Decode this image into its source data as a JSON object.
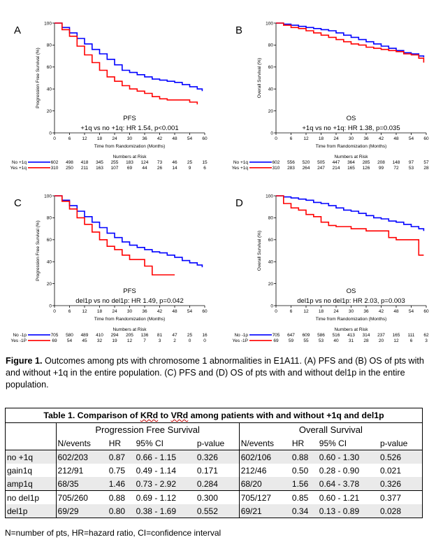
{
  "panels": [
    {
      "letter": "A",
      "ylabel": "Progression Free Survival (%)",
      "xlabel": "Time from Randomization (Months)",
      "caption_title": "PFS",
      "caption_sub": "+1q vs no +1q: HR 1.54, p<0.001",
      "risk_header": "Numbers at Risk",
      "xticks": [
        0,
        6,
        12,
        18,
        24,
        30,
        36,
        42,
        48,
        54,
        60
      ],
      "yticks": [
        0,
        20,
        40,
        60,
        80,
        100
      ],
      "risk_rows": [
        {
          "label": "No +1q",
          "color": "#0000ff",
          "values": [
            "602",
            "498",
            "418",
            "345",
            "255",
            "183",
            "124",
            "73",
            "46",
            "25",
            "15"
          ]
        },
        {
          "label": "Yes +1q",
          "color": "#ff0000",
          "values": [
            "310",
            "250",
            "211",
            "163",
            "107",
            "69",
            "44",
            "26",
            "14",
            "9",
            "6"
          ]
        }
      ]
    },
    {
      "letter": "B",
      "ylabel": "Overall Survival (%)",
      "xlabel": "Time from Randomization (Months)",
      "caption_title": "OS",
      "caption_sub": "+1q vs no +1q: HR 1.38, p=0.035",
      "risk_header": "Numbers at Risk",
      "xticks": [
        0,
        6,
        12,
        18,
        24,
        30,
        36,
        42,
        48,
        54,
        60
      ],
      "yticks": [
        0,
        20,
        40,
        60,
        80,
        100
      ],
      "risk_rows": [
        {
          "label": "No +1q",
          "color": "#0000ff",
          "values": [
            "602",
            "556",
            "520",
            "505",
            "447",
            "364",
            "285",
            "208",
            "148",
            "97",
            "57"
          ]
        },
        {
          "label": "Yes +1q",
          "color": "#ff0000",
          "values": [
            "310",
            "283",
            "264",
            "247",
            "214",
            "165",
            "126",
            "99",
            "72",
            "53",
            "28"
          ]
        }
      ]
    },
    {
      "letter": "C",
      "ylabel": "Progression Free Survival (%)",
      "xlabel": "Time from Randomization (Months)",
      "caption_title": "PFS",
      "caption_sub": "del1p vs no del1p: HR 1.49, p=0.042",
      "risk_header": "Numbers at Risk",
      "xticks": [
        0,
        6,
        12,
        18,
        24,
        30,
        36,
        42,
        48,
        54,
        60
      ],
      "yticks": [
        0,
        20,
        40,
        60,
        80,
        100
      ],
      "risk_rows": [
        {
          "label": "No -1p",
          "color": "#0000ff",
          "values": [
            "705",
            "580",
            "489",
            "410",
            "294",
            "205",
            "136",
            "81",
            "47",
            "25",
            "16"
          ]
        },
        {
          "label": "Yes -1P",
          "color": "#ff0000",
          "values": [
            "69",
            "54",
            "45",
            "32",
            "19",
            "12",
            "7",
            "3",
            "2",
            "0",
            "0"
          ]
        }
      ]
    },
    {
      "letter": "D",
      "ylabel": "Overall Survival (%)",
      "xlabel": "Time from Randomization (Months)",
      "caption_title": "OS",
      "caption_sub": "del1p vs no del1p: HR 2.03, p=0.003",
      "risk_header": "Numbers at Risk",
      "xticks": [
        0,
        6,
        12,
        18,
        24,
        30,
        36,
        42,
        48,
        54,
        60
      ],
      "yticks": [
        0,
        20,
        40,
        60,
        80,
        100
      ],
      "risk_rows": [
        {
          "label": "No -1p",
          "color": "#0000ff",
          "values": [
            "705",
            "647",
            "609",
            "586",
            "516",
            "413",
            "314",
            "237",
            "165",
            "111",
            "62"
          ]
        },
        {
          "label": "Yes -1P",
          "color": "#ff0000",
          "values": [
            "69",
            "59",
            "55",
            "53",
            "40",
            "31",
            "28",
            "20",
            "12",
            "6",
            "3"
          ]
        }
      ]
    }
  ],
  "chart_data": [
    {
      "type": "line",
      "title": "PFS",
      "subtitle": "+1q vs no +1q: HR 1.54, p<0.001",
      "xlabel": "Time from Randomization (Months)",
      "ylabel": "Progression Free Survival (%)",
      "xlim": [
        0,
        60
      ],
      "ylim": [
        0,
        100
      ],
      "grid": false,
      "series": [
        {
          "name": "No +1q",
          "color": "#0000ff",
          "x": [
            0,
            3,
            6,
            9,
            12,
            15,
            18,
            21,
            24,
            27,
            30,
            33,
            36,
            39,
            42,
            45,
            48,
            51,
            54,
            57,
            59
          ],
          "y": [
            100,
            96,
            91,
            86,
            81,
            76,
            72,
            67,
            62,
            57,
            55,
            53,
            51,
            49,
            48,
            47,
            46,
            44,
            42,
            40,
            38
          ]
        },
        {
          "name": "Yes +1q",
          "color": "#ff0000",
          "x": [
            0,
            3,
            6,
            9,
            12,
            15,
            18,
            21,
            24,
            27,
            30,
            33,
            36,
            39,
            42,
            45,
            48,
            51,
            54,
            57
          ],
          "y": [
            100,
            94,
            88,
            79,
            71,
            64,
            57,
            51,
            47,
            43,
            40,
            38,
            36,
            33,
            31,
            30,
            30,
            30,
            28,
            26
          ]
        }
      ]
    },
    {
      "type": "line",
      "title": "OS",
      "subtitle": "+1q vs no +1q: HR 1.38, p=0.035",
      "xlabel": "Time from Randomization (Months)",
      "ylabel": "Overall Survival (%)",
      "xlim": [
        0,
        60
      ],
      "ylim": [
        0,
        100
      ],
      "grid": false,
      "series": [
        {
          "name": "No +1q",
          "color": "#0000ff",
          "x": [
            0,
            3,
            6,
            9,
            12,
            15,
            18,
            21,
            24,
            27,
            30,
            33,
            36,
            39,
            42,
            45,
            48,
            51,
            54,
            57,
            59
          ],
          "y": [
            100,
            99,
            98,
            97,
            96,
            95,
            94,
            93,
            91,
            89,
            87,
            85,
            83,
            81,
            79,
            77,
            75,
            73,
            72,
            70,
            69
          ]
        },
        {
          "name": "Yes +1q",
          "color": "#ff0000",
          "x": [
            0,
            3,
            6,
            9,
            12,
            15,
            18,
            21,
            24,
            27,
            30,
            33,
            36,
            39,
            42,
            45,
            48,
            51,
            54,
            57,
            59
          ],
          "y": [
            100,
            98,
            96,
            95,
            93,
            91,
            89,
            87,
            85,
            83,
            81,
            80,
            78,
            77,
            76,
            75,
            74,
            72,
            71,
            68,
            64
          ]
        }
      ]
    },
    {
      "type": "line",
      "title": "PFS",
      "subtitle": "del1p vs no del1p: HR 1.49, p=0.042",
      "xlabel": "Time from Randomization (Months)",
      "ylabel": "Progression Free Survival (%)",
      "xlim": [
        0,
        60
      ],
      "ylim": [
        0,
        100
      ],
      "grid": false,
      "series": [
        {
          "name": "No -1p",
          "color": "#0000ff",
          "x": [
            0,
            3,
            6,
            9,
            12,
            15,
            18,
            21,
            24,
            27,
            30,
            33,
            36,
            39,
            42,
            45,
            48,
            51,
            54,
            57,
            59
          ],
          "y": [
            100,
            96,
            91,
            86,
            81,
            76,
            71,
            66,
            62,
            58,
            55,
            53,
            51,
            49,
            48,
            46,
            44,
            41,
            39,
            37,
            35
          ]
        },
        {
          "name": "Yes -1P",
          "color": "#ff0000",
          "x": [
            0,
            3,
            6,
            9,
            12,
            15,
            18,
            21,
            24,
            27,
            30,
            33,
            36,
            39,
            42,
            45,
            48
          ],
          "y": [
            100,
            95,
            88,
            80,
            74,
            67,
            60,
            54,
            51,
            46,
            42,
            42,
            36,
            28,
            28,
            28,
            28
          ]
        }
      ]
    },
    {
      "type": "line",
      "title": "OS",
      "subtitle": "del1p vs no del1p: HR 2.03, p=0.003",
      "xlabel": "Time from Randomization (Months)",
      "ylabel": "Overall Survival (%)",
      "xlim": [
        0,
        60
      ],
      "ylim": [
        0,
        100
      ],
      "grid": false,
      "series": [
        {
          "name": "No -1p",
          "color": "#0000ff",
          "x": [
            0,
            3,
            6,
            9,
            12,
            15,
            18,
            21,
            24,
            27,
            30,
            33,
            36,
            39,
            42,
            45,
            48,
            51,
            54,
            57,
            59
          ],
          "y": [
            100,
            99,
            98,
            97,
            96,
            94,
            93,
            91,
            89,
            87,
            86,
            84,
            82,
            80,
            79,
            77,
            76,
            74,
            72,
            70,
            68
          ]
        },
        {
          "name": "Yes -1P",
          "color": "#ff0000",
          "x": [
            0,
            3,
            6,
            9,
            12,
            15,
            18,
            21,
            24,
            27,
            30,
            33,
            36,
            39,
            42,
            45,
            48,
            51,
            54,
            57,
            59
          ],
          "y": [
            100,
            93,
            89,
            87,
            83,
            81,
            76,
            73,
            72,
            72,
            70,
            70,
            68,
            68,
            68,
            62,
            60,
            60,
            60,
            46,
            46
          ]
        }
      ]
    }
  ],
  "figure_caption": {
    "bold": "Figure 1.",
    "text": " Outcomes among pts with chromosome 1 abnormalities in E1A11. (A) PFS and (B) OS of pts with and without +1q in the entire population. (C) PFS and (D) OS of pts with and without del1p in the entire population."
  },
  "table": {
    "title_pre": "Table 1. Comparison of ",
    "title_krd": "KRd",
    "title_to": " to ",
    "title_vrd": "VRd",
    "title_post": " among patients with and without +1q and del1p",
    "group_pfs": "Progression Free Survival",
    "group_os": "Overall Survival",
    "headers": [
      "N/events",
      "HR",
      "95% CI",
      "p-value"
    ],
    "rows": [
      {
        "label": "no +1q",
        "pfs": [
          "602/203",
          "0.87",
          "0.66 - 1.15",
          "0.326"
        ],
        "os": [
          "602/106",
          "0.88",
          "0.60 - 1.30",
          "0.526"
        ]
      },
      {
        "label": "gain1q",
        "pfs": [
          "212/91",
          "0.75",
          "0.49 - 1.14",
          "0.171"
        ],
        "os": [
          "212/46",
          "0.50",
          "0.28 - 0.90",
          "0.021"
        ]
      },
      {
        "label": "amp1q",
        "pfs": [
          "68/35",
          "1.46",
          "0.73 - 2.92",
          "0.284"
        ],
        "os": [
          "68/20",
          "1.56",
          "0.64 - 3.78",
          "0.326"
        ]
      },
      {
        "label": "no del1p",
        "pfs": [
          "705/260",
          "0.88",
          "0.69 - 1.12",
          "0.300"
        ],
        "os": [
          "705/127",
          "0.85",
          "0.60 - 1.21",
          "0.377"
        ]
      },
      {
        "label": "del1p",
        "pfs": [
          "69/29",
          "0.80",
          "0.38 - 1.69",
          "0.552"
        ],
        "os": [
          "69/21",
          "0.34",
          "0.13 - 0.89",
          "0.028"
        ]
      }
    ]
  },
  "footnote": "N=number of pts, HR=hazard ratio, CI=confidence interval"
}
